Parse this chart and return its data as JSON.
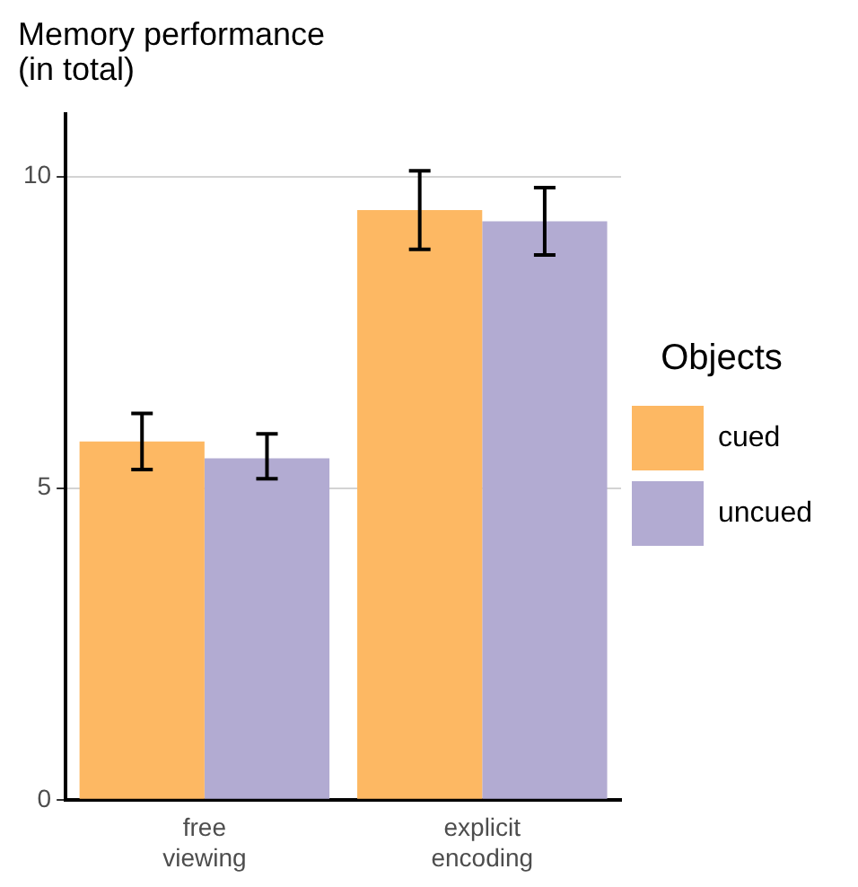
{
  "chart_data": {
    "type": "bar",
    "title": "Memory performance\n(in total)",
    "legend_title": "Objects",
    "categories": [
      "free\nviewing",
      "explicit\nencoding"
    ],
    "series": [
      {
        "name": "cued",
        "color": "#fdb863",
        "values": [
          5.75,
          9.46
        ],
        "errors": [
          [
            5.3,
            6.2
          ],
          [
            8.83,
            10.09
          ]
        ]
      },
      {
        "name": "uncued",
        "color": "#b2abd2",
        "values": [
          5.48,
          9.28
        ],
        "errors": [
          [
            5.15,
            5.87
          ],
          [
            8.74,
            9.82
          ]
        ]
      }
    ],
    "ylim": [
      0,
      11
    ],
    "yticks": [
      0,
      5,
      10
    ],
    "grid": "y",
    "legend": "right"
  }
}
